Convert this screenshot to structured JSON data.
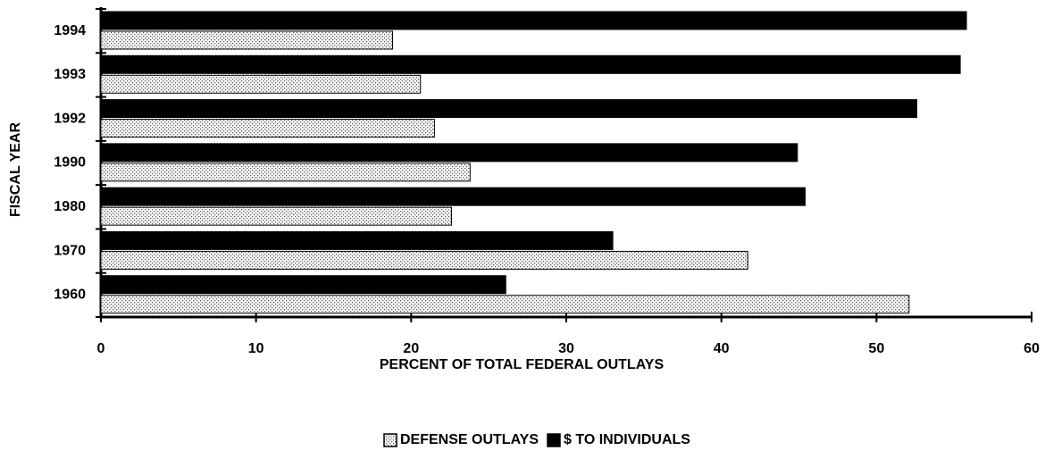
{
  "chart_data": {
    "type": "barh",
    "xlabel": "PERCENT OF TOTAL FEDERAL OUTLAYS",
    "ylabel": "FISCAL YEAR",
    "categories": [
      "1960",
      "1970",
      "1980",
      "1990",
      "1992",
      "1993",
      "1994"
    ],
    "series": [
      {
        "name": "DEFENSE OUTLAYS",
        "color": "#ffffff",
        "values": [
          52.1,
          41.7,
          22.6,
          23.8,
          21.5,
          20.6,
          18.8
        ]
      },
      {
        "name": "$ TO INDIVIDUALS",
        "color": "#000000",
        "values": [
          26.1,
          33.0,
          45.4,
          44.9,
          52.6,
          55.4,
          55.8
        ]
      }
    ],
    "xlim": [
      0,
      60
    ],
    "xticks": [
      0,
      10,
      20,
      30,
      40,
      50,
      60
    ],
    "legend": "bottom"
  }
}
